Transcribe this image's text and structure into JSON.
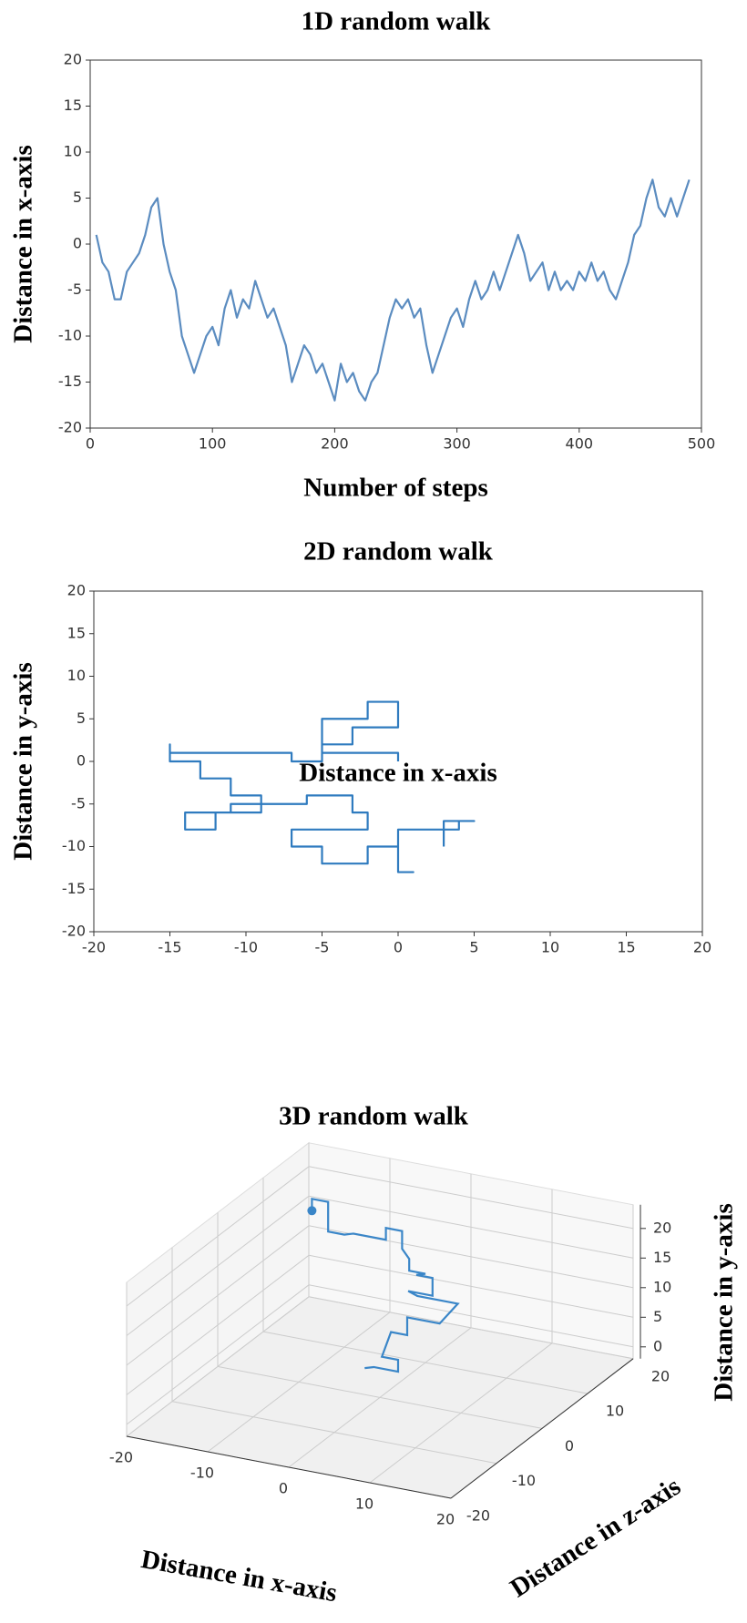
{
  "chart_data": [
    {
      "type": "line",
      "title": "1D random walk",
      "xlabel": "Number of steps",
      "ylabel": "Distance in x-axis",
      "x": [
        5,
        10,
        15,
        20,
        25,
        30,
        35,
        40,
        45,
        50,
        55,
        60,
        65,
        70,
        75,
        80,
        85,
        90,
        95,
        100,
        105,
        110,
        115,
        120,
        125,
        130,
        135,
        140,
        145,
        150,
        155,
        160,
        165,
        170,
        175,
        180,
        185,
        190,
        195,
        200,
        205,
        210,
        215,
        220,
        225,
        230,
        235,
        240,
        245,
        250,
        255,
        260,
        265,
        270,
        275,
        280,
        285,
        290,
        295,
        300,
        305,
        310,
        315,
        320,
        325,
        330,
        335,
        340,
        345,
        350,
        355,
        360,
        365,
        370,
        375,
        380,
        385,
        390,
        395,
        400,
        405,
        410,
        415,
        420,
        425,
        430,
        435,
        440,
        445,
        450,
        455,
        460,
        465,
        470,
        475,
        480,
        485,
        490
      ],
      "series": [
        {
          "name": "walk",
          "color": "#5b8cc0",
          "values": [
            1,
            -2,
            -3,
            -6,
            -6,
            -3,
            -2,
            -1,
            1,
            4,
            5,
            0,
            -3,
            -5,
            -10,
            -12,
            -14,
            -12,
            -10,
            -9,
            -11,
            -7,
            -5,
            -8,
            -6,
            -7,
            -4,
            -6,
            -8,
            -7,
            -9,
            -11,
            -15,
            -13,
            -11,
            -12,
            -14,
            -13,
            -15,
            -17,
            -13,
            -15,
            -14,
            -16,
            -17,
            -15,
            -14,
            -11,
            -8,
            -6,
            -7,
            -6,
            -8,
            -7,
            -11,
            -14,
            -12,
            -10,
            -8,
            -7,
            -9,
            -6,
            -4,
            -6,
            -5,
            -3,
            -5,
            -3,
            -1,
            1,
            -1,
            -4,
            -3,
            -2,
            -5,
            -3,
            -5,
            -4,
            -5,
            -3,
            -4,
            -2,
            -4,
            -3,
            -5,
            -6,
            -4,
            -2,
            1,
            2,
            5,
            7,
            4,
            3,
            5,
            3,
            5,
            7
          ]
        }
      ],
      "xlim": [
        0,
        500
      ],
      "xticks": [
        0,
        100,
        200,
        300,
        400,
        500
      ],
      "ylim": [
        -20,
        20
      ],
      "yticks": [
        -20,
        -15,
        -10,
        -5,
        0,
        5,
        10,
        15,
        20
      ],
      "grid": false
    },
    {
      "type": "line",
      "title": "2D random walk",
      "xlabel": "Distance in x-axis",
      "ylabel": "Distance in y-axis",
      "x": [
        0,
        0,
        -5,
        -5,
        -2,
        -2,
        0,
        0,
        -3,
        -3,
        -5,
        -5,
        -7,
        -7,
        -15,
        -15,
        -15,
        -13,
        -13,
        -11,
        -11,
        -9,
        -9,
        -12,
        -12,
        -14,
        -14,
        -11,
        -11,
        -6,
        -6,
        -3,
        -3,
        -2,
        -2,
        -7,
        -7,
        -5,
        -5,
        -2,
        -2,
        0,
        0,
        1,
        0,
        0,
        4,
        4,
        5,
        3,
        3
      ],
      "series": [
        {
          "name": "walk",
          "color": "#2f7bbf",
          "values": [
            0,
            1,
            1,
            5,
            5,
            7,
            7,
            4,
            4,
            2,
            2,
            0,
            0,
            1,
            1,
            2,
            0,
            0,
            -2,
            -2,
            -4,
            -4,
            -6,
            -6,
            -8,
            -8,
            -6,
            -6,
            -5,
            -5,
            -4,
            -4,
            -6,
            -6,
            -8,
            -8,
            -10,
            -10,
            -12,
            -12,
            -10,
            -10,
            -13,
            -13,
            -13,
            -8,
            -8,
            -7,
            -7,
            -7,
            -10
          ]
        }
      ],
      "xlim": [
        -20,
        20
      ],
      "xticks": [
        -20,
        -15,
        -10,
        -5,
        0,
        5,
        10,
        15,
        20
      ],
      "ylim": [
        -20,
        20
      ],
      "yticks": [
        -20,
        -15,
        -10,
        -5,
        0,
        5,
        10,
        15,
        20
      ],
      "grid": false
    },
    {
      "type": "line3d",
      "title": "3D random walk",
      "xlabel": "Distance in x-axis",
      "ylabel": "Distance in y-axis",
      "zlabel": "Distance in z-axis",
      "x": [
        -14,
        -14,
        -12,
        -12,
        -12,
        -10,
        -10,
        -6,
        -6,
        -4,
        -4,
        -2,
        -2,
        0,
        0,
        2,
        2,
        -1,
        -1,
        4,
        4,
        0,
        0,
        -2,
        -2,
        0,
        0,
        -3,
        -3
      ],
      "z": [
        10,
        10,
        10,
        10,
        10,
        10,
        12,
        12,
        12,
        12,
        12,
        10,
        10,
        10,
        8,
        8,
        8,
        8,
        10,
        10,
        6,
        6,
        6,
        6,
        4,
        4,
        4,
        4,
        2
      ],
      "series": [
        {
          "name": "walk",
          "color": "#3a86c8",
          "values": [
            20,
            22,
            22,
            20,
            17,
            17,
            16,
            16,
            18,
            18,
            15,
            15,
            13,
            13,
            14,
            14,
            11,
            11,
            9,
            9,
            8,
            8,
            5,
            5,
            2,
            2,
            0,
            0,
            1
          ]
        }
      ],
      "xlim": [
        -20,
        20
      ],
      "xticks": [
        -20,
        -10,
        0,
        10,
        20
      ],
      "zlim": [
        -20,
        20
      ],
      "zticks": [
        -20,
        -10,
        0,
        10,
        20
      ],
      "ylim": [
        -2,
        24
      ],
      "yticks": [
        0,
        5,
        10,
        15,
        20
      ],
      "grid": true
    }
  ]
}
